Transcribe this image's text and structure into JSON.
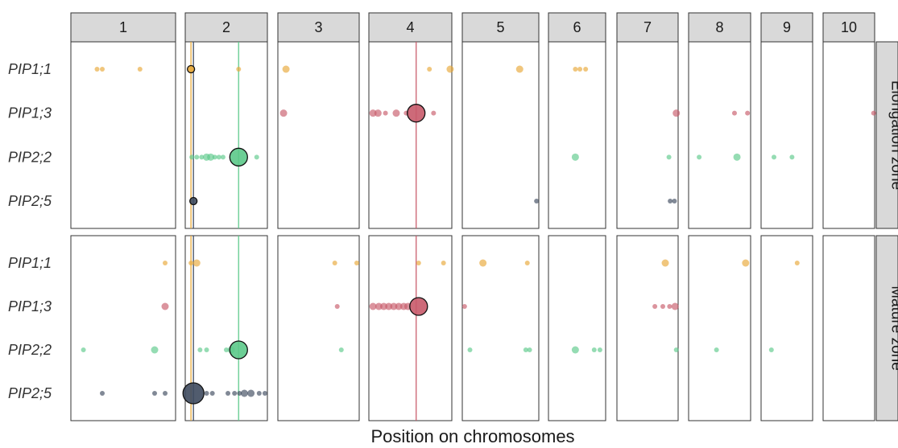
{
  "chart_data": {
    "type": "scatter",
    "xlabel": "Position on chromosomes",
    "ylabel": "",
    "chromosomes": [
      "1",
      "2",
      "3",
      "4",
      "5",
      "6",
      "7",
      "8",
      "9",
      "10"
    ],
    "zones": [
      "Elongation zone",
      "Mature zone"
    ],
    "genes": [
      "PIP1;1",
      "PIP1;3",
      "PIP2;2",
      "PIP2;5"
    ],
    "colors": {
      "PIP1;1": "#E8A838",
      "PIP1;3": "#C85A6A",
      "PIP2;2": "#5CC98A",
      "PIP2;5": "#3E4A5E"
    },
    "x_units": "relative position within chromosome panel (0-1)",
    "vlines": [
      {
        "chrom": "2",
        "x": 0.07,
        "gene": "PIP1;1"
      },
      {
        "chrom": "2",
        "x": 0.1,
        "gene": "PIP2;5"
      },
      {
        "chrom": "2",
        "x": 0.65,
        "gene": "PIP2;2"
      },
      {
        "chrom": "4",
        "x": 0.57,
        "gene": "PIP1;3"
      }
    ],
    "points": [
      {
        "zone": "Elongation zone",
        "gene": "PIP1;1",
        "chrom": "1",
        "x": 0.25,
        "size": 1
      },
      {
        "zone": "Elongation zone",
        "gene": "PIP1;1",
        "chrom": "1",
        "x": 0.3,
        "size": 1
      },
      {
        "zone": "Elongation zone",
        "gene": "PIP1;1",
        "chrom": "1",
        "x": 0.66,
        "size": 1
      },
      {
        "zone": "Elongation zone",
        "gene": "PIP1;1",
        "chrom": "2",
        "x": 0.07,
        "size": 2,
        "highlight": true
      },
      {
        "zone": "Elongation zone",
        "gene": "PIP1;1",
        "chrom": "2",
        "x": 0.65,
        "size": 1
      },
      {
        "zone": "Elongation zone",
        "gene": "PIP1;1",
        "chrom": "3",
        "x": 0.1,
        "size": 2
      },
      {
        "zone": "Elongation zone",
        "gene": "PIP1;1",
        "chrom": "4",
        "x": 0.73,
        "size": 1
      },
      {
        "zone": "Elongation zone",
        "gene": "PIP1;1",
        "chrom": "4",
        "x": 0.98,
        "size": 2
      },
      {
        "zone": "Elongation zone",
        "gene": "PIP1;1",
        "chrom": "5",
        "x": 0.75,
        "size": 2
      },
      {
        "zone": "Elongation zone",
        "gene": "PIP1;1",
        "chrom": "6",
        "x": 0.47,
        "size": 1
      },
      {
        "zone": "Elongation zone",
        "gene": "PIP1;1",
        "chrom": "6",
        "x": 0.55,
        "size": 1
      },
      {
        "zone": "Elongation zone",
        "gene": "PIP1;1",
        "chrom": "6",
        "x": 0.65,
        "size": 1
      },
      {
        "zone": "Elongation zone",
        "gene": "PIP1;3",
        "chrom": "3",
        "x": 0.07,
        "size": 2
      },
      {
        "zone": "Elongation zone",
        "gene": "PIP1;3",
        "chrom": "4",
        "x": 0.05,
        "size": 2
      },
      {
        "zone": "Elongation zone",
        "gene": "PIP1;3",
        "chrom": "4",
        "x": 0.11,
        "size": 2
      },
      {
        "zone": "Elongation zone",
        "gene": "PIP1;3",
        "chrom": "4",
        "x": 0.2,
        "size": 1
      },
      {
        "zone": "Elongation zone",
        "gene": "PIP1;3",
        "chrom": "4",
        "x": 0.33,
        "size": 2
      },
      {
        "zone": "Elongation zone",
        "gene": "PIP1;3",
        "chrom": "4",
        "x": 0.45,
        "size": 1
      },
      {
        "zone": "Elongation zone",
        "gene": "PIP1;3",
        "chrom": "4",
        "x": 0.57,
        "size": 4,
        "highlight": true
      },
      {
        "zone": "Elongation zone",
        "gene": "PIP1;3",
        "chrom": "4",
        "x": 0.78,
        "size": 1
      },
      {
        "zone": "Elongation zone",
        "gene": "PIP1;3",
        "chrom": "7",
        "x": 0.97,
        "size": 2
      },
      {
        "zone": "Elongation zone",
        "gene": "PIP1;3",
        "chrom": "8",
        "x": 0.74,
        "size": 1
      },
      {
        "zone": "Elongation zone",
        "gene": "PIP1;3",
        "chrom": "8",
        "x": 0.95,
        "size": 1
      },
      {
        "zone": "Elongation zone",
        "gene": "PIP1;3",
        "chrom": "10",
        "x": 0.98,
        "size": 1
      },
      {
        "zone": "Elongation zone",
        "gene": "PIP2;2",
        "chrom": "2",
        "x": 0.08,
        "size": 1
      },
      {
        "zone": "Elongation zone",
        "gene": "PIP2;2",
        "chrom": "2",
        "x": 0.14,
        "size": 1
      },
      {
        "zone": "Elongation zone",
        "gene": "PIP2;2",
        "chrom": "2",
        "x": 0.2,
        "size": 1
      },
      {
        "zone": "Elongation zone",
        "gene": "PIP2;2",
        "chrom": "2",
        "x": 0.26,
        "size": 2
      },
      {
        "zone": "Elongation zone",
        "gene": "PIP2;2",
        "chrom": "2",
        "x": 0.31,
        "size": 2
      },
      {
        "zone": "Elongation zone",
        "gene": "PIP2;2",
        "chrom": "2",
        "x": 0.36,
        "size": 1
      },
      {
        "zone": "Elongation zone",
        "gene": "PIP2;2",
        "chrom": "2",
        "x": 0.41,
        "size": 1
      },
      {
        "zone": "Elongation zone",
        "gene": "PIP2;2",
        "chrom": "2",
        "x": 0.46,
        "size": 1
      },
      {
        "zone": "Elongation zone",
        "gene": "PIP2;2",
        "chrom": "2",
        "x": 0.65,
        "size": 4,
        "highlight": true
      },
      {
        "zone": "Elongation zone",
        "gene": "PIP2;2",
        "chrom": "2",
        "x": 0.87,
        "size": 1
      },
      {
        "zone": "Elongation zone",
        "gene": "PIP2;2",
        "chrom": "6",
        "x": 0.47,
        "size": 2
      },
      {
        "zone": "Elongation zone",
        "gene": "PIP2;2",
        "chrom": "7",
        "x": 0.85,
        "size": 1
      },
      {
        "zone": "Elongation zone",
        "gene": "PIP2;2",
        "chrom": "8",
        "x": 0.17,
        "size": 1
      },
      {
        "zone": "Elongation zone",
        "gene": "PIP2;2",
        "chrom": "8",
        "x": 0.78,
        "size": 2
      },
      {
        "zone": "Elongation zone",
        "gene": "PIP2;2",
        "chrom": "9",
        "x": 0.25,
        "size": 1
      },
      {
        "zone": "Elongation zone",
        "gene": "PIP2;2",
        "chrom": "9",
        "x": 0.6,
        "size": 1
      },
      {
        "zone": "Elongation zone",
        "gene": "PIP2;5",
        "chrom": "2",
        "x": 0.1,
        "size": 2,
        "highlight": true
      },
      {
        "zone": "Elongation zone",
        "gene": "PIP2;5",
        "chrom": "5",
        "x": 0.97,
        "size": 1
      },
      {
        "zone": "Elongation zone",
        "gene": "PIP2;5",
        "chrom": "7",
        "x": 0.87,
        "size": 1
      },
      {
        "zone": "Elongation zone",
        "gene": "PIP2;5",
        "chrom": "7",
        "x": 0.94,
        "size": 1
      },
      {
        "zone": "Mature zone",
        "gene": "PIP1;1",
        "chrom": "1",
        "x": 0.9,
        "size": 1
      },
      {
        "zone": "Mature zone",
        "gene": "PIP1;1",
        "chrom": "2",
        "x": 0.07,
        "size": 1
      },
      {
        "zone": "Mature zone",
        "gene": "PIP1;1",
        "chrom": "2",
        "x": 0.14,
        "size": 2
      },
      {
        "zone": "Mature zone",
        "gene": "PIP1;1",
        "chrom": "3",
        "x": 0.7,
        "size": 1
      },
      {
        "zone": "Mature zone",
        "gene": "PIP1;1",
        "chrom": "3",
        "x": 0.97,
        "size": 1
      },
      {
        "zone": "Mature zone",
        "gene": "PIP1;1",
        "chrom": "4",
        "x": 0.6,
        "size": 1
      },
      {
        "zone": "Mature zone",
        "gene": "PIP1;1",
        "chrom": "4",
        "x": 0.9,
        "size": 1
      },
      {
        "zone": "Mature zone",
        "gene": "PIP1;1",
        "chrom": "5",
        "x": 0.27,
        "size": 2
      },
      {
        "zone": "Mature zone",
        "gene": "PIP1;1",
        "chrom": "5",
        "x": 0.85,
        "size": 1
      },
      {
        "zone": "Mature zone",
        "gene": "PIP1;1",
        "chrom": "7",
        "x": 0.79,
        "size": 2
      },
      {
        "zone": "Mature zone",
        "gene": "PIP1;1",
        "chrom": "8",
        "x": 0.92,
        "size": 2
      },
      {
        "zone": "Mature zone",
        "gene": "PIP1;1",
        "chrom": "9",
        "x": 0.7,
        "size": 1
      },
      {
        "zone": "Mature zone",
        "gene": "PIP1;3",
        "chrom": "1",
        "x": 0.9,
        "size": 2
      },
      {
        "zone": "Mature zone",
        "gene": "PIP1;3",
        "chrom": "3",
        "x": 0.73,
        "size": 1
      },
      {
        "zone": "Mature zone",
        "gene": "PIP1;3",
        "chrom": "4",
        "x": 0.05,
        "size": 2
      },
      {
        "zone": "Mature zone",
        "gene": "PIP1;3",
        "chrom": "4",
        "x": 0.12,
        "size": 2
      },
      {
        "zone": "Mature zone",
        "gene": "PIP1;3",
        "chrom": "4",
        "x": 0.18,
        "size": 2
      },
      {
        "zone": "Mature zone",
        "gene": "PIP1;3",
        "chrom": "4",
        "x": 0.24,
        "size": 2
      },
      {
        "zone": "Mature zone",
        "gene": "PIP1;3",
        "chrom": "4",
        "x": 0.3,
        "size": 2
      },
      {
        "zone": "Mature zone",
        "gene": "PIP1;3",
        "chrom": "4",
        "x": 0.36,
        "size": 2
      },
      {
        "zone": "Mature zone",
        "gene": "PIP1;3",
        "chrom": "4",
        "x": 0.42,
        "size": 2
      },
      {
        "zone": "Mature zone",
        "gene": "PIP1;3",
        "chrom": "4",
        "x": 0.47,
        "size": 2
      },
      {
        "zone": "Mature zone",
        "gene": "PIP1;3",
        "chrom": "4",
        "x": 0.6,
        "size": 4,
        "highlight": true
      },
      {
        "zone": "Mature zone",
        "gene": "PIP1;3",
        "chrom": "5",
        "x": 0.03,
        "size": 1
      },
      {
        "zone": "Mature zone",
        "gene": "PIP1;3",
        "chrom": "7",
        "x": 0.62,
        "size": 1
      },
      {
        "zone": "Mature zone",
        "gene": "PIP1;3",
        "chrom": "7",
        "x": 0.75,
        "size": 1
      },
      {
        "zone": "Mature zone",
        "gene": "PIP1;3",
        "chrom": "7",
        "x": 0.86,
        "size": 1
      },
      {
        "zone": "Mature zone",
        "gene": "PIP1;3",
        "chrom": "7",
        "x": 0.95,
        "size": 2
      },
      {
        "zone": "Mature zone",
        "gene": "PIP2;2",
        "chrom": "1",
        "x": 0.12,
        "size": 1
      },
      {
        "zone": "Mature zone",
        "gene": "PIP2;2",
        "chrom": "1",
        "x": 0.8,
        "size": 2
      },
      {
        "zone": "Mature zone",
        "gene": "PIP2;2",
        "chrom": "2",
        "x": 0.18,
        "size": 1
      },
      {
        "zone": "Mature zone",
        "gene": "PIP2;2",
        "chrom": "2",
        "x": 0.26,
        "size": 1
      },
      {
        "zone": "Mature zone",
        "gene": "PIP2;2",
        "chrom": "2",
        "x": 0.5,
        "size": 1
      },
      {
        "zone": "Mature zone",
        "gene": "PIP2;2",
        "chrom": "2",
        "x": 0.56,
        "size": 2
      },
      {
        "zone": "Mature zone",
        "gene": "PIP2;2",
        "chrom": "2",
        "x": 0.65,
        "size": 4,
        "highlight": true
      },
      {
        "zone": "Mature zone",
        "gene": "PIP2;2",
        "chrom": "3",
        "x": 0.78,
        "size": 1
      },
      {
        "zone": "Mature zone",
        "gene": "PIP2;2",
        "chrom": "5",
        "x": 0.1,
        "size": 1
      },
      {
        "zone": "Mature zone",
        "gene": "PIP2;2",
        "chrom": "5",
        "x": 0.83,
        "size": 1
      },
      {
        "zone": "Mature zone",
        "gene": "PIP2;2",
        "chrom": "5",
        "x": 0.88,
        "size": 1
      },
      {
        "zone": "Mature zone",
        "gene": "PIP2;2",
        "chrom": "6",
        "x": 0.47,
        "size": 2
      },
      {
        "zone": "Mature zone",
        "gene": "PIP2;2",
        "chrom": "6",
        "x": 0.8,
        "size": 1
      },
      {
        "zone": "Mature zone",
        "gene": "PIP2;2",
        "chrom": "6",
        "x": 0.9,
        "size": 1
      },
      {
        "zone": "Mature zone",
        "gene": "PIP2;2",
        "chrom": "7",
        "x": 0.97,
        "size": 1
      },
      {
        "zone": "Mature zone",
        "gene": "PIP2;2",
        "chrom": "8",
        "x": 0.45,
        "size": 1
      },
      {
        "zone": "Mature zone",
        "gene": "PIP2;2",
        "chrom": "9",
        "x": 0.2,
        "size": 1
      },
      {
        "zone": "Mature zone",
        "gene": "PIP2;5",
        "chrom": "1",
        "x": 0.3,
        "size": 1
      },
      {
        "zone": "Mature zone",
        "gene": "PIP2;5",
        "chrom": "1",
        "x": 0.8,
        "size": 1
      },
      {
        "zone": "Mature zone",
        "gene": "PIP2;5",
        "chrom": "1",
        "x": 0.9,
        "size": 1
      },
      {
        "zone": "Mature zone",
        "gene": "PIP2;5",
        "chrom": "2",
        "x": 0.1,
        "size": 5,
        "highlight": true
      },
      {
        "zone": "Mature zone",
        "gene": "PIP2;5",
        "chrom": "2",
        "x": 0.26,
        "size": 1
      },
      {
        "zone": "Mature zone",
        "gene": "PIP2;5",
        "chrom": "2",
        "x": 0.33,
        "size": 1
      },
      {
        "zone": "Mature zone",
        "gene": "PIP2;5",
        "chrom": "2",
        "x": 0.52,
        "size": 1
      },
      {
        "zone": "Mature zone",
        "gene": "PIP2;5",
        "chrom": "2",
        "x": 0.6,
        "size": 1
      },
      {
        "zone": "Mature zone",
        "gene": "PIP2;5",
        "chrom": "2",
        "x": 0.66,
        "size": 1
      },
      {
        "zone": "Mature zone",
        "gene": "PIP2;5",
        "chrom": "2",
        "x": 0.72,
        "size": 2
      },
      {
        "zone": "Mature zone",
        "gene": "PIP2;5",
        "chrom": "2",
        "x": 0.8,
        "size": 2
      },
      {
        "zone": "Mature zone",
        "gene": "PIP2;5",
        "chrom": "2",
        "x": 0.9,
        "size": 1
      },
      {
        "zone": "Mature zone",
        "gene": "PIP2;5",
        "chrom": "2",
        "x": 0.97,
        "size": 1
      }
    ]
  }
}
